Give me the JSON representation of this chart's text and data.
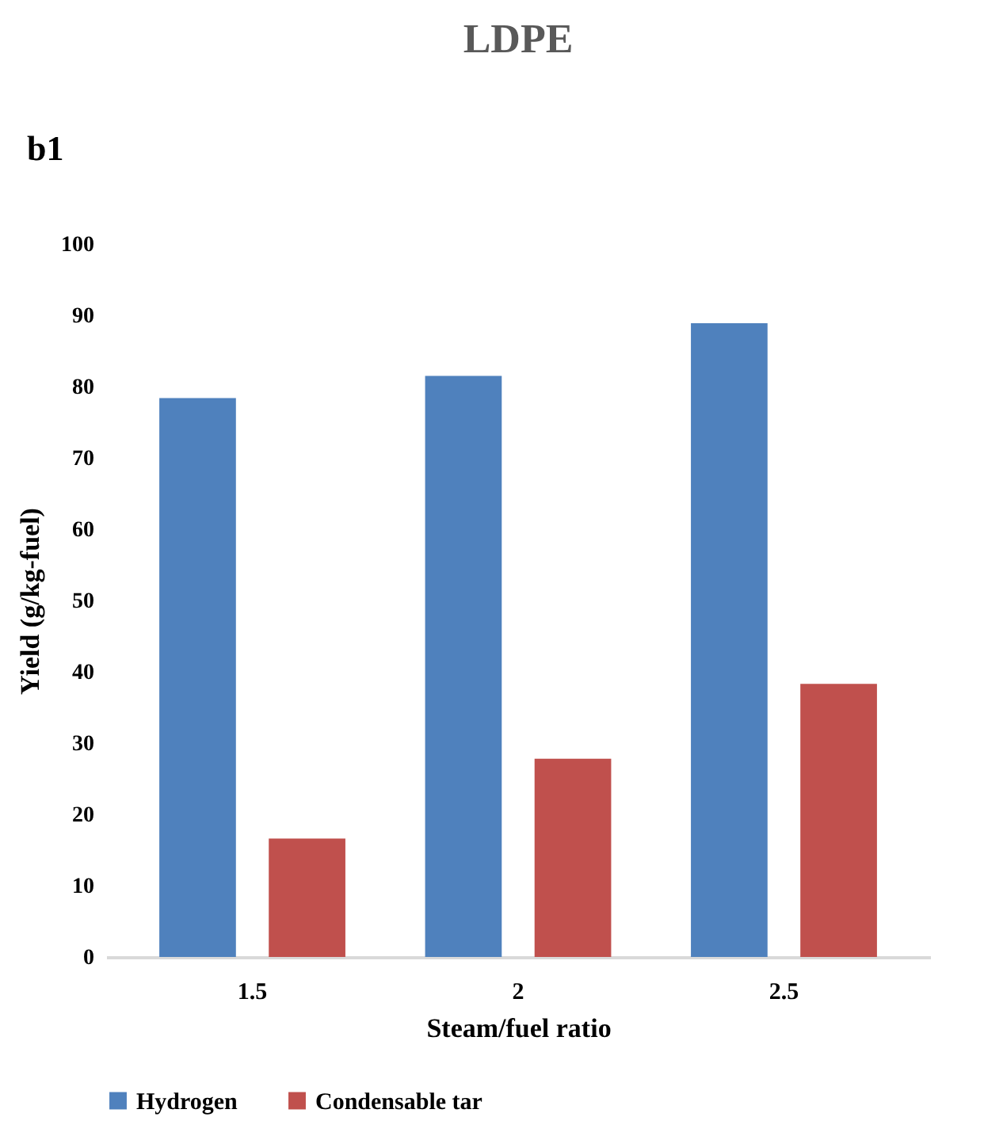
{
  "chart_data": {
    "type": "bar",
    "title": "LDPE",
    "annotations": [
      "b1"
    ],
    "xlabel": "Steam/fuel ratio",
    "ylabel": "Yield (g/kg-fuel)",
    "categories": [
      "1.5",
      "2",
      "2.5"
    ],
    "series": [
      {
        "name": "Hydrogen",
        "color": "#4f81bd",
        "values": [
          78.4,
          81.5,
          88.9
        ]
      },
      {
        "name": "Condensable tar",
        "color": "#c0504d",
        "values": [
          16.6,
          27.8,
          38.3
        ]
      }
    ],
    "ylim": [
      0,
      100
    ],
    "yticks": [
      0,
      10,
      20,
      30,
      40,
      50,
      60,
      70,
      80,
      90,
      100
    ],
    "grid": false,
    "legend": "bottom"
  }
}
